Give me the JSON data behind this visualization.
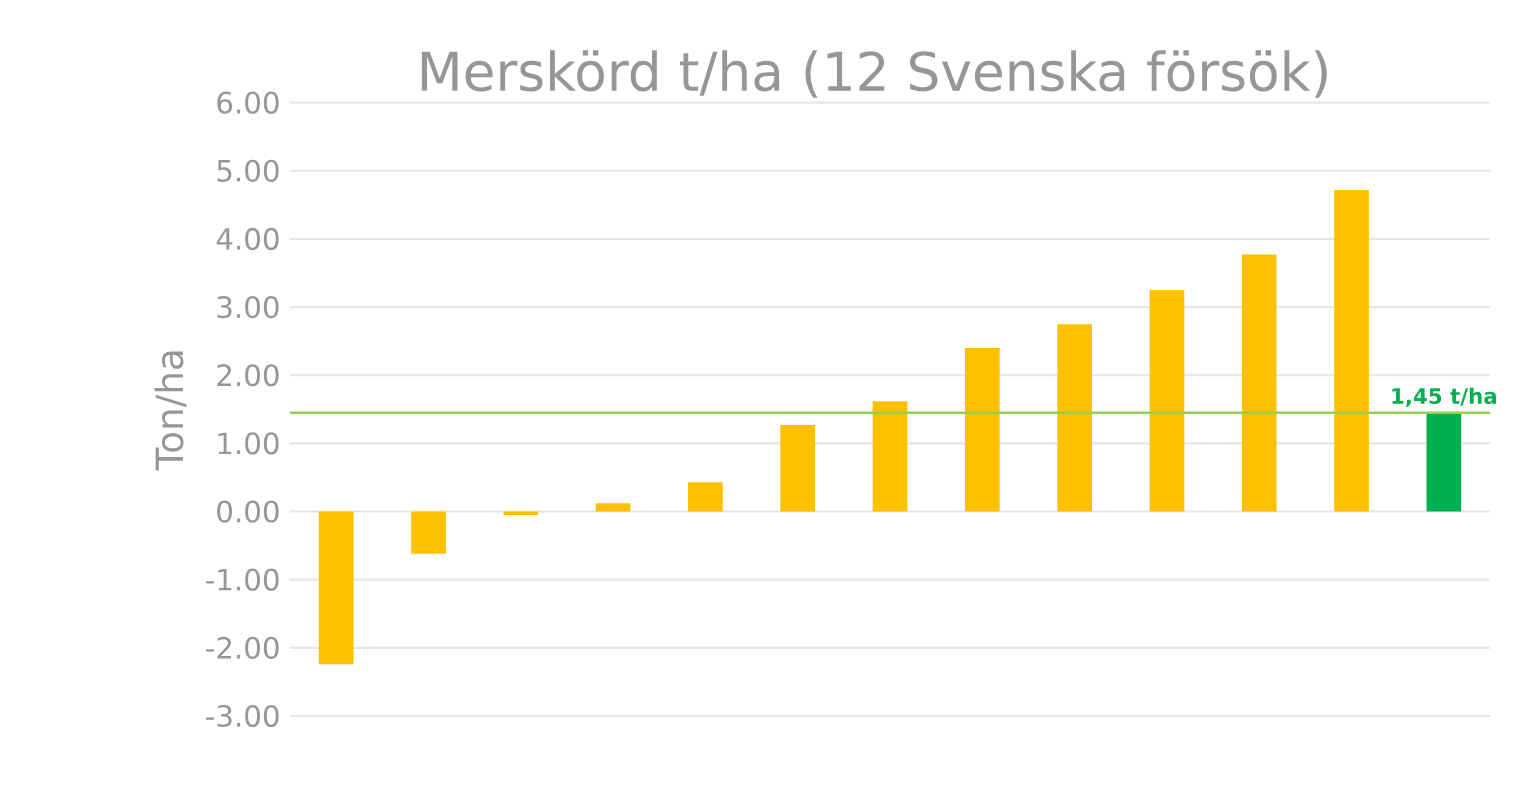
{
  "chart_data": {
    "type": "bar",
    "title": "Merskörd t/ha (12 Svenska försök)",
    "ylabel": "Ton/ha",
    "categories": [
      null,
      null,
      null,
      null,
      null,
      null,
      null,
      null,
      null,
      null,
      null,
      null,
      null
    ],
    "values": [
      -2.24,
      -0.62,
      -0.05,
      0.12,
      0.43,
      1.27,
      1.62,
      2.4,
      2.75,
      3.25,
      3.77,
      4.72,
      1.45
    ],
    "colors": [
      "#ffc000",
      "#ffc000",
      "#ffc000",
      "#ffc000",
      "#ffc000",
      "#ffc000",
      "#ffc000",
      "#ffc000",
      "#ffc000",
      "#ffc000",
      "#ffc000",
      "#ffc000",
      "#00b050"
    ],
    "value_labels": [
      null,
      null,
      null,
      null,
      null,
      null,
      null,
      null,
      null,
      null,
      null,
      null,
      "1,45 t/ha"
    ],
    "ylim": [
      -3,
      6
    ],
    "yticks": [
      {
        "value": -3,
        "label": "-3.00"
      },
      {
        "value": -2,
        "label": "-2.00"
      },
      {
        "value": -1,
        "label": "-1.00"
      },
      {
        "value": 0,
        "label": "0.00"
      },
      {
        "value": 1,
        "label": "1.00"
      },
      {
        "value": 2,
        "label": "2.00"
      },
      {
        "value": 3,
        "label": "3.00"
      },
      {
        "value": 4,
        "label": "4.00"
      },
      {
        "value": 5,
        "label": "5.00"
      },
      {
        "value": 6,
        "label": "6.00"
      }
    ],
    "ref_lines": [
      {
        "axis": "y",
        "value": 1.45,
        "color": "#92d050"
      }
    ],
    "grid": "y"
  }
}
